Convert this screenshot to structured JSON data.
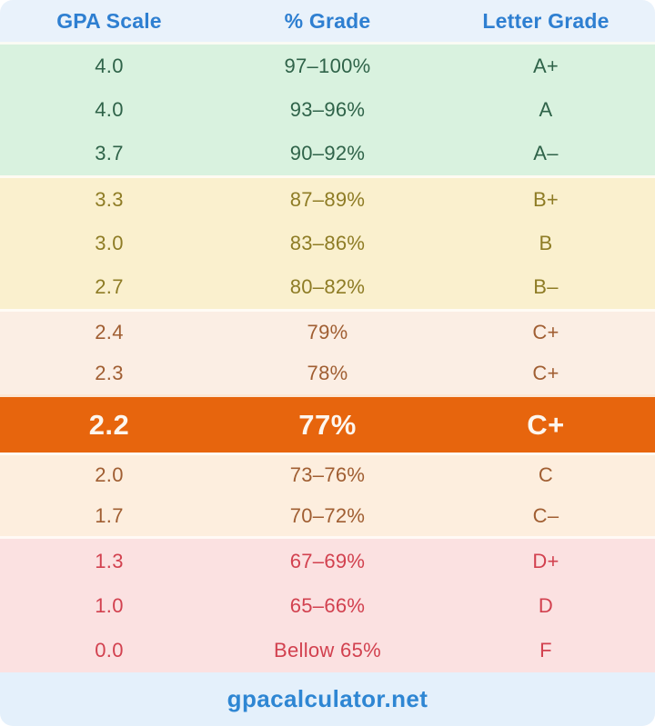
{
  "header": {
    "columns": [
      "GPA Scale",
      "% Grade",
      "Letter Grade"
    ],
    "bg": "#e9f2fb",
    "color": "#2e7fd1"
  },
  "sections": [
    {
      "name": "a-grades",
      "bg": "#d9f2df",
      "color": "#2f6349",
      "rows": [
        [
          "4.0",
          "97–100%",
          "A+"
        ],
        [
          "4.0",
          "93–96%",
          "A"
        ],
        [
          "3.7",
          "90–92%",
          "A–"
        ]
      ]
    },
    {
      "name": "b-grades",
      "bg": "#faf0ce",
      "color": "#8e7c25",
      "rows": [
        [
          "3.3",
          "87–89%",
          "B+"
        ],
        [
          "3.0",
          "83–86%",
          "B"
        ],
        [
          "2.7",
          "80–82%",
          "B–"
        ]
      ]
    },
    {
      "name": "c-plus-grades",
      "bg": "#fbeee4",
      "color": "#a05e32",
      "rows": [
        [
          "2.4",
          "79%",
          "C+"
        ],
        [
          "2.3",
          "78%",
          "C+"
        ]
      ]
    },
    {
      "name": "highlighted-grade",
      "bg": "#e7650d",
      "color": "#fdf6ee",
      "highlight": true,
      "rows": [
        [
          "2.2",
          "77%",
          "C+"
        ]
      ]
    },
    {
      "name": "c-grades",
      "bg": "#fdeede",
      "color": "#a05e32",
      "rows": [
        [
          "2.0",
          "73–76%",
          "C"
        ],
        [
          "1.7",
          "70–72%",
          "C–"
        ]
      ]
    },
    {
      "name": "d-f-grades",
      "bg": "#fbe1e1",
      "color": "#d2414f",
      "rows": [
        [
          "1.3",
          "67–69%",
          "D+"
        ],
        [
          "1.0",
          "65–66%",
          "D"
        ],
        [
          "0.0",
          "Bellow 65%",
          "F"
        ]
      ]
    }
  ],
  "footer": {
    "site": "gpacalculator.net",
    "bg": "#e4f0fb",
    "color": "#2e86d3"
  },
  "chart_data": {
    "type": "table",
    "columns": [
      "GPA Scale",
      "% Grade",
      "Letter Grade"
    ],
    "rows": [
      [
        "4.0",
        "97–100%",
        "A+"
      ],
      [
        "4.0",
        "93–96%",
        "A"
      ],
      [
        "3.7",
        "90–92%",
        "A–"
      ],
      [
        "3.3",
        "87–89%",
        "B+"
      ],
      [
        "3.0",
        "83–86%",
        "B"
      ],
      [
        "2.7",
        "80–82%",
        "B–"
      ],
      [
        "2.4",
        "79%",
        "C+"
      ],
      [
        "2.3",
        "78%",
        "C+"
      ],
      [
        "2.2",
        "77%",
        "C+"
      ],
      [
        "2.0",
        "73–76%",
        "C"
      ],
      [
        "1.7",
        "70–72%",
        "C–"
      ],
      [
        "1.3",
        "67–69%",
        "D+"
      ],
      [
        "1.0",
        "65–66%",
        "D"
      ],
      [
        "0.0",
        "Bellow 65%",
        "F"
      ]
    ],
    "highlighted_row": [
      "2.2",
      "77%",
      "C+"
    ],
    "highlight_color": "#e7650d",
    "source": "gpacalculator.net"
  }
}
